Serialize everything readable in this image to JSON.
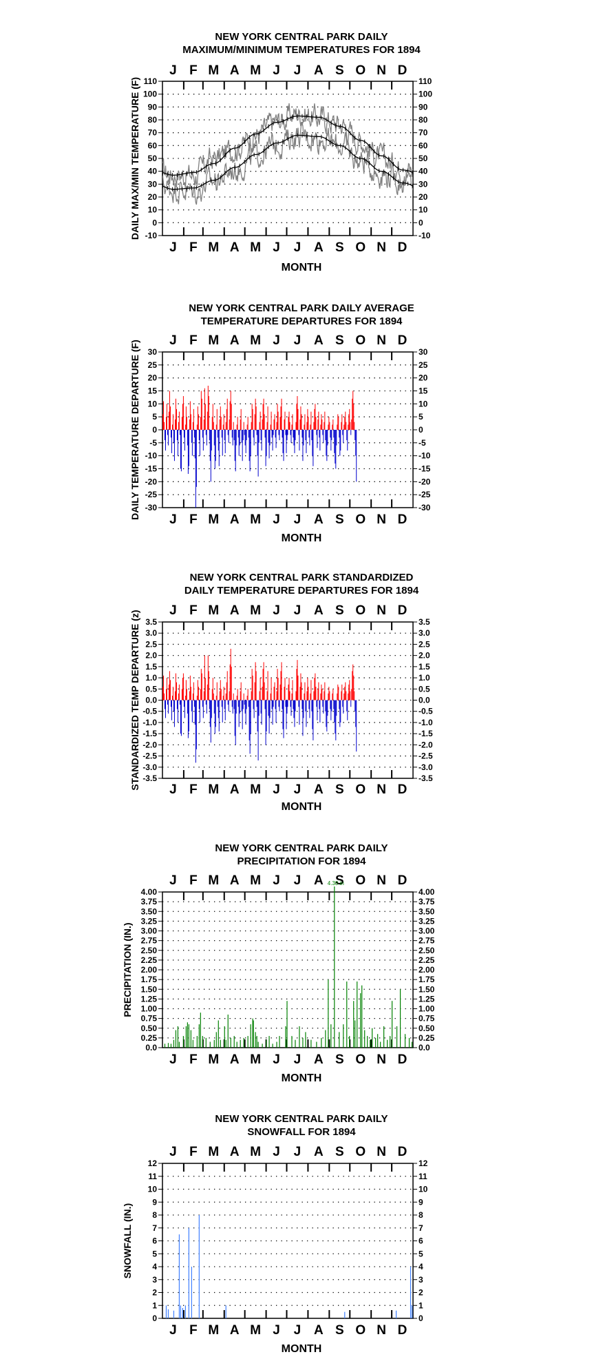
{
  "chart_data": [
    {
      "type": "line",
      "title": "NEW YORK CENTRAL PARK DAILY",
      "subtitle": "MAXIMUM/MINIMUM TEMPERATURES FOR 1894",
      "xlabel": "MONTH",
      "ylabel": "DAILY MAX/MIN TEMPERATURE (F)",
      "categories": [
        "J",
        "F",
        "M",
        "A",
        "M",
        "J",
        "J",
        "A",
        "S",
        "O",
        "N",
        "D"
      ],
      "ylim": [
        -10,
        110
      ],
      "yticks": [
        "-10",
        "0",
        "10",
        "20",
        "30",
        "40",
        "50",
        "60",
        "70",
        "80",
        "90",
        "100",
        "110"
      ],
      "grid": true,
      "normals": {
        "max_normal_monthly": [
          37,
          39,
          46,
          58,
          69,
          78,
          83,
          82,
          75,
          64,
          52,
          41
        ],
        "min_normal_monthly": [
          26,
          27,
          33,
          43,
          53,
          62,
          68,
          67,
          60,
          50,
          40,
          31
        ]
      },
      "series": [
        {
          "key": "daily_max",
          "color": "#808080",
          "monthly_mean": [
            38,
            37,
            50,
            58,
            68,
            79,
            85,
            82,
            77,
            64,
            50,
            42
          ]
        },
        {
          "key": "daily_min",
          "color": "#808080",
          "monthly_mean": [
            27,
            24,
            33,
            41,
            52,
            61,
            68,
            66,
            60,
            48,
            38,
            32
          ]
        }
      ]
    },
    {
      "type": "bar",
      "title": "NEW YORK CENTRAL PARK DAILY AVERAGE",
      "subtitle": "TEMPERATURE DEPARTURES FOR 1894",
      "xlabel": "MONTH",
      "ylabel": "DAILY TEMPERATURE DEPARTURE (F)",
      "categories": [
        "J",
        "F",
        "M",
        "A",
        "M",
        "J",
        "J",
        "A",
        "S",
        "O",
        "N",
        "D"
      ],
      "ylim": [
        -30,
        30
      ],
      "yticks": [
        "30",
        "25",
        "20",
        "15",
        "10",
        "5",
        "0",
        "-5",
        "-10",
        "-15",
        "-20",
        "-25",
        "-30"
      ],
      "grid": true,
      "positive_color": "#ff0000",
      "negative_color": "#0000cc",
      "daily_values": [
        6,
        11,
        3,
        -4,
        -8,
        5,
        10,
        -2,
        -6,
        7,
        15,
        9,
        -3,
        -9,
        2,
        6,
        -5,
        -12,
        4,
        12,
        8,
        -4,
        -10,
        3,
        7,
        -2,
        -15,
        -16,
        5,
        10,
        13,
        -3,
        -8,
        2,
        9,
        5,
        -6,
        -17,
        -14,
        4,
        11,
        6,
        -5,
        -10,
        3,
        8,
        -3,
        -11,
        -30,
        -22,
        2,
        9,
        6,
        -4,
        -10,
        5,
        15,
        12,
        -3,
        -8,
        4,
        16,
        10,
        -2,
        -6,
        7,
        17,
        13,
        -4,
        -12,
        -20,
        -8,
        5,
        10,
        3,
        -6,
        -15,
        -12,
        2,
        8,
        -3,
        -8,
        -14,
        4,
        9,
        5,
        -3,
        -10,
        2,
        6,
        -4,
        -9,
        3,
        8,
        12,
        -2,
        -5,
        4,
        11,
        15,
        10,
        -3,
        -6,
        3,
        -4,
        -12,
        -16,
        -6,
        2,
        5,
        -3,
        -10,
        -6,
        4,
        8,
        -5,
        -12,
        -4,
        3,
        -2,
        -6,
        -9,
        -4,
        2,
        5,
        -3,
        -12,
        -16,
        -10,
        3,
        10,
        8,
        -3,
        -6,
        6,
        12,
        9,
        -2,
        -10,
        -18,
        -5,
        3,
        7,
        -4,
        -8,
        4,
        10,
        12,
        6,
        -3,
        -14,
        -10,
        3,
        9,
        -5,
        -11,
        -6,
        2,
        7,
        -3,
        -8,
        -2,
        4,
        6,
        -3,
        -7,
        3,
        10,
        7,
        -2,
        -4,
        5,
        9,
        12,
        -3,
        -9,
        -12,
        4,
        7,
        -2,
        -9,
        -4,
        -2,
        5,
        7,
        3,
        -2,
        -5,
        2,
        6,
        -3,
        -6,
        -9,
        -4,
        3,
        10,
        13,
        8,
        -2,
        -8,
        4,
        9,
        6,
        -3,
        -12,
        -6,
        2,
        6,
        -4,
        -9,
        3,
        8,
        5,
        -3,
        -6,
        2,
        7,
        -4,
        -10,
        -14,
        3,
        8,
        10,
        5,
        -2,
        -7,
        4,
        7,
        -3,
        -8,
        2,
        6,
        4,
        -2,
        -5,
        3,
        7,
        -4,
        -10,
        -12,
        -6,
        2,
        5,
        3,
        -3,
        -8,
        -4,
        2,
        4,
        -3,
        -9,
        -13,
        -15,
        -6,
        2,
        6,
        5,
        -3,
        -10,
        -8,
        3,
        6,
        -2,
        -5,
        2,
        5,
        7,
        3,
        -4,
        -8,
        2,
        6,
        8,
        3,
        -2,
        4,
        12,
        15,
        10,
        3,
        -4,
        -10,
        -20
      ],
      "series": [
        {
          "key": "departure"
        }
      ]
    },
    {
      "type": "bar",
      "title": "NEW YORK CENTRAL PARK STANDARDIZED",
      "subtitle": "DAILY TEMPERATURE DEPARTURES FOR 1894",
      "xlabel": "MONTH",
      "ylabel": "STANDARDIZED TEMP DEPARTURE (z)",
      "categories": [
        "J",
        "F",
        "M",
        "A",
        "M",
        "J",
        "J",
        "A",
        "S",
        "O",
        "N",
        "D"
      ],
      "ylim": [
        -3.5,
        3.5
      ],
      "yticks": [
        "3.5",
        "3.0",
        "2.5",
        "2.0",
        "1.5",
        "1.0",
        "0.5",
        "0.0",
        "-0.5",
        "-1.0",
        "-1.5",
        "-2.0",
        "-2.5",
        "-3.0",
        "-3.5"
      ],
      "grid": true,
      "positive_color": "#ff0000",
      "negative_color": "#0000cc",
      "daily_values": [
        0.6,
        1.1,
        0.3,
        -0.4,
        -0.8,
        0.5,
        1.0,
        -0.2,
        -0.6,
        0.7,
        1.3,
        0.9,
        -0.3,
        -0.9,
        0.2,
        0.6,
        -0.5,
        -1.2,
        0.4,
        1.2,
        0.8,
        -0.4,
        -1.0,
        0.3,
        0.7,
        -0.2,
        -1.5,
        -1.6,
        0.5,
        1.0,
        1.2,
        -0.3,
        -0.8,
        0.2,
        0.9,
        0.5,
        -0.6,
        -1.7,
        -1.4,
        0.4,
        1.1,
        0.6,
        -0.5,
        -1.0,
        0.3,
        0.8,
        -0.3,
        -1.1,
        -2.8,
        -2.2,
        0.2,
        0.9,
        0.6,
        -0.4,
        -1.0,
        0.5,
        1.4,
        1.2,
        -0.3,
        -0.8,
        0.4,
        2.0,
        1.0,
        -0.2,
        -0.6,
        0.7,
        2.0,
        1.3,
        -0.4,
        -1.2,
        -1.9,
        -0.8,
        0.5,
        1.0,
        0.3,
        -0.6,
        -1.5,
        -1.2,
        0.2,
        0.8,
        -0.3,
        -0.8,
        -1.4,
        0.4,
        0.9,
        0.5,
        -0.3,
        -1.0,
        0.2,
        0.6,
        -0.4,
        -0.9,
        0.3,
        0.8,
        1.3,
        -0.2,
        -0.5,
        0.4,
        1.6,
        2.3,
        1.5,
        -0.3,
        -0.6,
        0.3,
        -0.4,
        -1.6,
        -2.0,
        -0.6,
        0.2,
        0.5,
        -0.3,
        -1.2,
        -0.6,
        0.4,
        0.8,
        -0.5,
        -1.3,
        -0.4,
        0.3,
        -0.2,
        -0.6,
        -1.1,
        -0.4,
        0.2,
        0.5,
        -0.3,
        -1.8,
        -2.4,
        -1.5,
        0.4,
        1.4,
        1.1,
        -0.4,
        -0.8,
        0.8,
        1.7,
        1.3,
        -0.3,
        -1.4,
        -2.7,
        -0.7,
        0.4,
        1.0,
        -0.6,
        -1.1,
        0.6,
        1.4,
        1.7,
        0.8,
        -0.4,
        -2.0,
        -1.4,
        0.4,
        1.3,
        -0.7,
        -1.5,
        -0.8,
        0.3,
        1.0,
        -0.4,
        -1.1,
        -0.3,
        0.6,
        0.8,
        -0.4,
        -1.0,
        0.4,
        1.4,
        1.0,
        -0.3,
        -0.5,
        0.7,
        1.3,
        1.7,
        -0.4,
        -1.3,
        -1.7,
        0.6,
        1.0,
        -0.3,
        -1.3,
        -0.6,
        -0.3,
        0.7,
        1.0,
        0.4,
        -0.3,
        -0.7,
        0.3,
        0.9,
        -0.4,
        -0.8,
        -1.2,
        -0.5,
        0.4,
        1.4,
        1.8,
        1.1,
        -0.3,
        -1.1,
        0.6,
        1.2,
        0.8,
        -0.4,
        -1.6,
        -0.8,
        0.3,
        0.8,
        -0.5,
        -1.2,
        0.4,
        1.0,
        0.6,
        -0.4,
        -0.8,
        0.3,
        0.9,
        -0.5,
        -1.3,
        -1.8,
        0.4,
        1.0,
        1.2,
        0.6,
        -0.3,
        -0.9,
        0.5,
        0.8,
        -0.4,
        -1.0,
        0.3,
        0.7,
        0.5,
        -0.3,
        -0.6,
        0.4,
        0.8,
        -0.5,
        -1.2,
        -1.4,
        -0.7,
        0.3,
        0.6,
        0.4,
        -0.4,
        -0.9,
        -0.5,
        0.3,
        0.5,
        -0.4,
        -1.0,
        -1.5,
        -1.8,
        -0.7,
        0.3,
        0.7,
        0.6,
        -0.4,
        -1.2,
        -1.0,
        0.4,
        0.7,
        -0.3,
        -0.6,
        0.3,
        0.6,
        0.8,
        0.4,
        -0.5,
        -0.9,
        0.3,
        0.7,
        0.9,
        0.4,
        -0.3,
        0.5,
        1.3,
        1.6,
        1.1,
        0.4,
        -0.5,
        -1.2,
        -2.3
      ],
      "series": [
        {
          "key": "z"
        }
      ]
    },
    {
      "type": "bar",
      "title": "NEW YORK CENTRAL PARK DAILY",
      "subtitle": "PRECIPITATION FOR 1894",
      "xlabel": "MONTH",
      "ylabel": "PRECIPITATION (IN.)",
      "categories": [
        "J",
        "F",
        "M",
        "A",
        "M",
        "J",
        "J",
        "A",
        "S",
        "O",
        "N",
        "D"
      ],
      "ylim": [
        0,
        4.0
      ],
      "yticks": [
        "4.00",
        "3.75",
        "3.50",
        "3.25",
        "3.00",
        "2.75",
        "2.50",
        "2.25",
        "2.00",
        "1.75",
        "1.50",
        "1.25",
        "1.00",
        "0.75",
        "0.50",
        "0.25",
        "0.0"
      ],
      "grid": true,
      "color": "#008000",
      "annotation": "4.30 in",
      "events": [
        [
          3,
          0.1
        ],
        [
          8,
          0.12
        ],
        [
          12,
          0.1
        ],
        [
          16,
          0.2
        ],
        [
          19,
          0.45
        ],
        [
          22,
          0.55
        ],
        [
          24,
          0.15
        ],
        [
          30,
          0.3
        ],
        [
          34,
          0.55
        ],
        [
          36,
          0.65
        ],
        [
          38,
          0.6
        ],
        [
          41,
          0.45
        ],
        [
          44,
          0.2
        ],
        [
          50,
          0.3
        ],
        [
          53,
          0.6
        ],
        [
          55,
          0.9
        ],
        [
          58,
          0.3
        ],
        [
          63,
          0.25
        ],
        [
          69,
          0.15
        ],
        [
          75,
          0.2
        ],
        [
          78,
          0.4
        ],
        [
          81,
          0.7
        ],
        [
          84,
          0.2
        ],
        [
          90,
          0.55
        ],
        [
          92,
          0.2
        ],
        [
          95,
          0.85
        ],
        [
          99,
          0.25
        ],
        [
          104,
          0.3
        ],
        [
          108,
          0.15
        ],
        [
          113,
          0.2
        ],
        [
          118,
          0.25
        ],
        [
          124,
          0.3
        ],
        [
          128,
          0.6
        ],
        [
          131,
          0.75
        ],
        [
          132,
          0.7
        ],
        [
          135,
          0.4
        ],
        [
          137,
          0.3
        ],
        [
          139,
          0.15
        ],
        [
          145,
          0.1
        ],
        [
          151,
          0.2
        ],
        [
          155,
          0.3
        ],
        [
          160,
          0.1
        ],
        [
          166,
          0.15
        ],
        [
          170,
          0.3
        ],
        [
          179,
          0.55
        ],
        [
          181,
          1.2
        ],
        [
          188,
          0.3
        ],
        [
          193,
          0.2
        ],
        [
          199,
          0.55
        ],
        [
          204,
          0.25
        ],
        [
          208,
          0.4
        ],
        [
          216,
          0.2
        ],
        [
          224,
          0.15
        ],
        [
          231,
          0.25
        ],
        [
          237,
          0.45
        ],
        [
          241,
          1.75
        ],
        [
          245,
          0.6
        ],
        [
          250,
          4.3
        ],
        [
          257,
          0.4
        ],
        [
          263,
          0.6
        ],
        [
          268,
          1.7
        ],
        [
          272,
          0.3
        ],
        [
          278,
          1.2
        ],
        [
          280,
          0.7
        ],
        [
          283,
          1.7
        ],
        [
          288,
          1.4
        ],
        [
          290,
          1.6
        ],
        [
          294,
          0.45
        ],
        [
          298,
          0.3
        ],
        [
          302,
          0.2
        ],
        [
          305,
          0.5
        ],
        [
          310,
          0.25
        ],
        [
          313,
          0.35
        ],
        [
          317,
          0.15
        ],
        [
          322,
          0.55
        ],
        [
          327,
          0.2
        ],
        [
          331,
          0.3
        ],
        [
          334,
          1.2
        ],
        [
          341,
          0.55
        ],
        [
          346,
          1.5
        ],
        [
          353,
          0.35
        ],
        [
          359,
          0.25
        ],
        [
          363,
          0.15
        ]
      ],
      "series": [
        {
          "key": "precip"
        }
      ]
    },
    {
      "type": "bar",
      "title": "NEW YORK CENTRAL PARK DAILY",
      "subtitle": "SNOWFALL FOR 1894",
      "xlabel": "MONTH",
      "ylabel": "SNOWFALL (IN.)",
      "categories": [
        "J",
        "F",
        "M",
        "A",
        "M",
        "J",
        "J",
        "A",
        "S",
        "O",
        "N",
        "D"
      ],
      "ylim": [
        0,
        12
      ],
      "yticks": [
        "12",
        "11",
        "10",
        "9",
        "8",
        "7",
        "6",
        "5",
        "4",
        "3",
        "2",
        "1",
        "0"
      ],
      "grid": true,
      "color": "#4080ff",
      "events": [
        [
          5,
          1.0
        ],
        [
          8,
          0.7
        ],
        [
          16,
          0.6
        ],
        [
          24,
          6.5
        ],
        [
          26,
          1.0
        ],
        [
          29,
          0.8
        ],
        [
          33,
          1.0
        ],
        [
          38,
          7.0
        ],
        [
          42,
          4.0
        ],
        [
          53,
          8.0
        ],
        [
          92,
          1.0
        ],
        [
          265,
          0.5
        ],
        [
          340,
          0.6
        ],
        [
          361,
          4.0
        ],
        [
          363,
          1.0
        ]
      ],
      "series": [
        {
          "key": "snow"
        }
      ]
    }
  ]
}
